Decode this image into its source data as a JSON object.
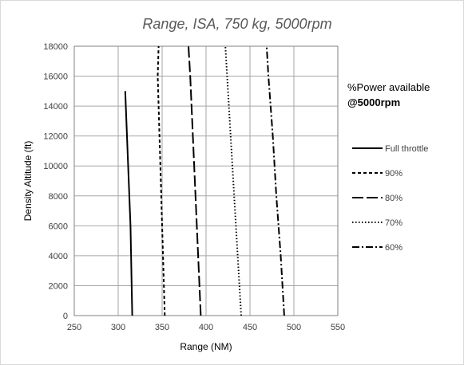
{
  "chart_data": {
    "type": "line",
    "title": "Range, ISA, 750 kg, 5000rpm",
    "xlabel": "Range (NM)",
    "ylabel": "Density Altitude (ft)",
    "xlim": [
      250,
      550
    ],
    "ylim": [
      0,
      18000
    ],
    "xticks": [
      250,
      300,
      350,
      400,
      450,
      500,
      550
    ],
    "yticks": [
      0,
      2000,
      4000,
      6000,
      8000,
      10000,
      12000,
      14000,
      16000,
      18000
    ],
    "xtick_labels": [
      "250",
      "300",
      "350",
      "400",
      "450",
      "500",
      "550"
    ],
    "ytick_labels": [
      "0",
      "2000",
      "4000",
      "6000",
      "8000",
      "10000",
      "12000",
      "14000",
      "16000",
      "18000"
    ],
    "grid": true,
    "legend_placement": "right",
    "legend_title": "%Power available",
    "legend_subtitle": "@5000rpm",
    "series": [
      {
        "name": "Full throttle",
        "dash": "solid",
        "color": "#000000",
        "x": [
          316,
          315,
          314,
          312,
          310,
          308
        ],
        "y": [
          0,
          3000,
          6000,
          9000,
          12000,
          15000
        ]
      },
      {
        "name": "90%",
        "dash": "dashed",
        "color": "#000000",
        "x": [
          353,
          351,
          349,
          347,
          345,
          346
        ],
        "y": [
          0,
          4000,
          8000,
          12000,
          16000,
          18000
        ]
      },
      {
        "name": "80%",
        "dash": "longdash",
        "color": "#000000",
        "x": [
          394,
          391,
          388,
          385,
          382,
          380
        ],
        "y": [
          0,
          4000,
          8000,
          12000,
          16000,
          18000
        ]
      },
      {
        "name": "70%",
        "dash": "dotted",
        "color": "#000000",
        "x": [
          440,
          436,
          432,
          428,
          424,
          422
        ],
        "y": [
          0,
          4000,
          8000,
          12000,
          16000,
          18000
        ]
      },
      {
        "name": "60%",
        "dash": "dashdot",
        "color": "#000000",
        "x": [
          489,
          485,
          480,
          476,
          471,
          469
        ],
        "y": [
          0,
          4000,
          8000,
          12000,
          16000,
          18000
        ]
      }
    ]
  }
}
